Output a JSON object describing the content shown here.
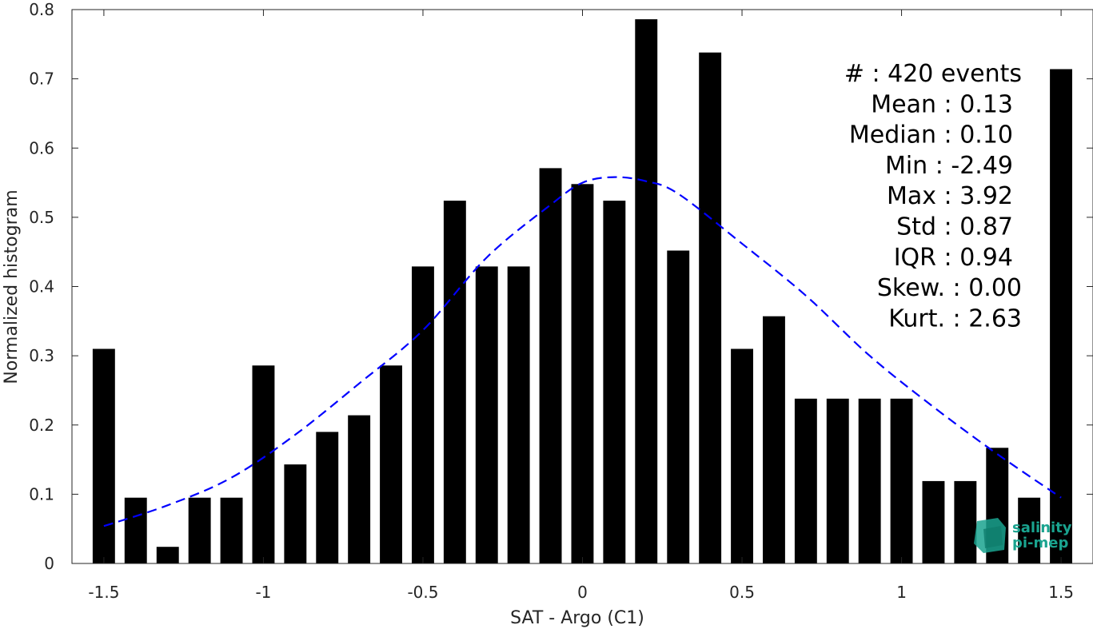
{
  "chart_data": {
    "type": "bar",
    "xlabel": "SAT - Argo (C1)",
    "ylabel": "Normalized histogram",
    "xlim": [
      -1.6,
      1.6
    ],
    "ylim": [
      0,
      0.8
    ],
    "xticks": [
      "-1.5",
      "-1",
      "-0.5",
      "0",
      "0.5",
      "1",
      "1.5"
    ],
    "xtick_values": [
      -1.5,
      -1,
      -0.5,
      0,
      0.5,
      1,
      1.5
    ],
    "yticks": [
      "0",
      "0.1",
      "0.2",
      "0.3",
      "0.4",
      "0.5",
      "0.6",
      "0.7",
      "0.8"
    ],
    "ytick_values": [
      0,
      0.1,
      0.2,
      0.3,
      0.4,
      0.5,
      0.6,
      0.7,
      0.8
    ],
    "bar_color": "#000000",
    "bins": [
      -1.5,
      -1.4,
      -1.3,
      -1.2,
      -1.1,
      -1.0,
      -0.9,
      -0.8,
      -0.7,
      -0.6,
      -0.5,
      -0.4,
      -0.3,
      -0.2,
      -0.1,
      0.0,
      0.1,
      0.2,
      0.3,
      0.4,
      0.5,
      0.6,
      0.7,
      0.8,
      0.9,
      1.0,
      1.1,
      1.2,
      1.3,
      1.4,
      1.5
    ],
    "values": [
      0.31,
      0.095,
      0.024,
      0.095,
      0.095,
      0.286,
      0.143,
      0.19,
      0.214,
      0.286,
      0.429,
      0.524,
      0.429,
      0.429,
      0.571,
      0.548,
      0.524,
      0.786,
      0.452,
      0.738,
      0.31,
      0.357,
      0.238,
      0.238,
      0.238,
      0.238,
      0.119,
      0.119,
      0.167,
      0.095,
      0.714
    ],
    "fit_curve": {
      "style": "dashed",
      "color": "#0000ff",
      "x": [
        -1.5,
        -1.3,
        -1.1,
        -0.9,
        -0.7,
        -0.5,
        -0.3,
        -0.1,
        0.0,
        0.1,
        0.2,
        0.3,
        0.5,
        0.7,
        0.9,
        1.1,
        1.3,
        1.5
      ],
      "y": [
        0.054,
        0.084,
        0.124,
        0.186,
        0.26,
        0.337,
        0.442,
        0.518,
        0.55,
        0.558,
        0.552,
        0.534,
        0.462,
        0.387,
        0.3,
        0.226,
        0.158,
        0.095
      ]
    },
    "grid": false
  },
  "stats": [
    "#  : 420 events",
    "Mean : 0.13",
    "Median : 0.10",
    "Min : -2.49",
    "Max : 3.92",
    "Std : 0.87",
    "IQR : 0.94",
    "Skew. : 0.00",
    "Kurt. : 2.63"
  ],
  "logo": {
    "line1": "salinity",
    "line2": "pi-mep",
    "color": "#1aa38f",
    "icon": "salinity-cube-logo"
  }
}
